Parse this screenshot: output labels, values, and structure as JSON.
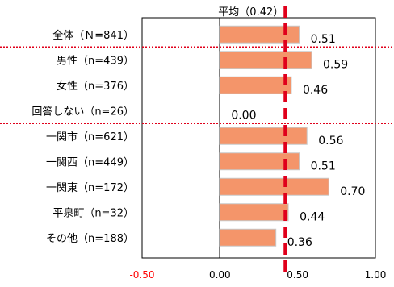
{
  "chart_data": {
    "type": "bar",
    "orientation": "horizontal",
    "categories": [
      "全体（Ｎ=841）",
      "男性（n=439）",
      "女性（n=376）",
      "回答しない（n=26）",
      "一関市（n=621）",
      "一関西（n=449）",
      "一関東（n=172）",
      "平泉町（n=32）",
      "その他（n=188）"
    ],
    "values": [
      0.51,
      0.59,
      0.46,
      0.0,
      0.56,
      0.51,
      0.7,
      0.44,
      0.36
    ],
    "value_labels": [
      "0.51",
      "0.59",
      "0.46",
      "0.00",
      "0.56",
      "0.51",
      "0.70",
      "0.44",
      "0.36"
    ],
    "xlim": [
      -0.5,
      1.0
    ],
    "x_ticks": [
      {
        "value": -0.5,
        "label": "-0.50",
        "color": "#ff0000"
      },
      {
        "value": 0.0,
        "label": "0.00",
        "color": "#000000"
      },
      {
        "value": 0.5,
        "label": "0.50",
        "color": "#000000"
      },
      {
        "value": 1.0,
        "label": "1.00",
        "color": "#000000"
      }
    ],
    "average": {
      "value": 0.42,
      "label": "平均（0.42）"
    },
    "group_separators_after": [
      0,
      3
    ],
    "colors": {
      "bar": "#f4956a",
      "bar_edge": "#c8c8c8",
      "average_line": "#e0001b",
      "separator": "#e0001b",
      "frame": "#000000"
    },
    "grid": false
  }
}
